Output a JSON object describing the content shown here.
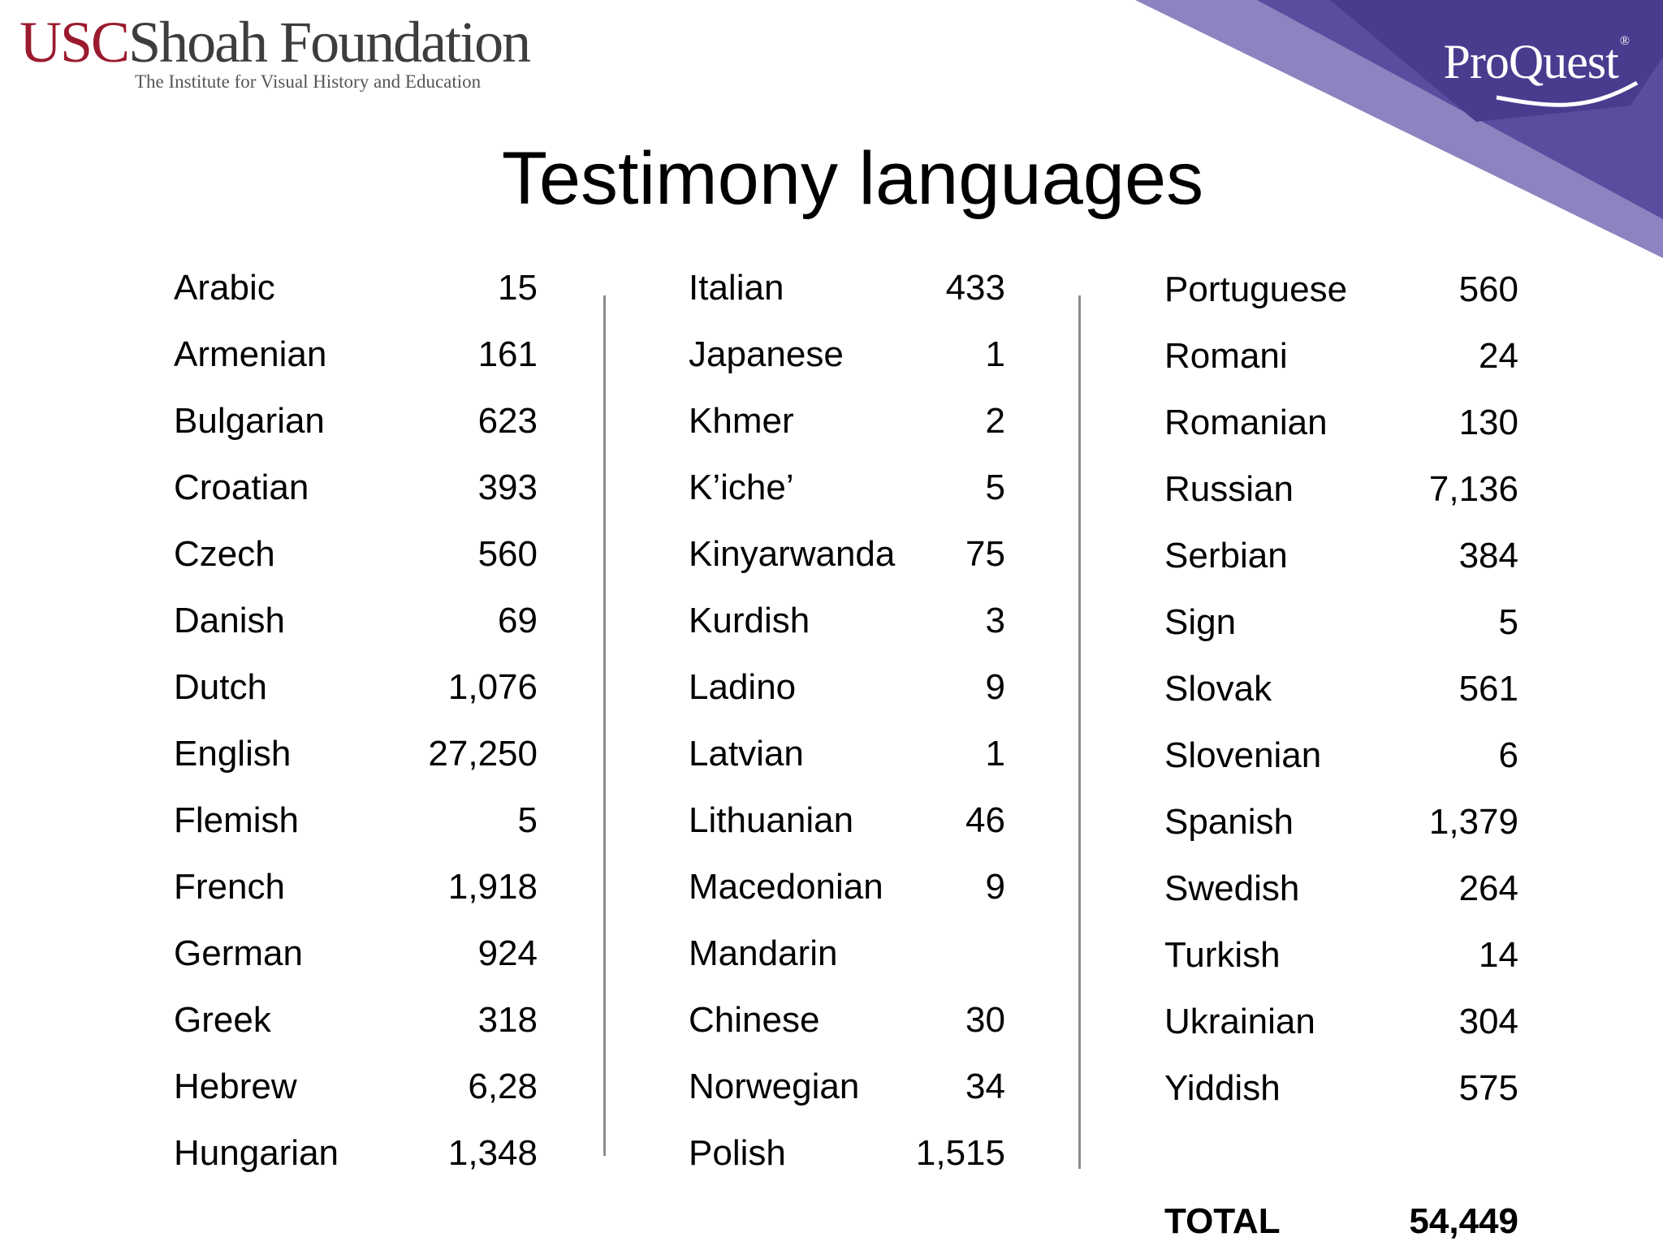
{
  "header": {
    "usc_logo": {
      "usc": "USC",
      "name": "Shoah Foundation",
      "subtitle": "The Institute for Visual History and Education"
    },
    "proquest_logo": {
      "text": "ProQuest",
      "mark": "®"
    },
    "colors": {
      "usc_red": "#9b1b2e",
      "proquest_purple": "#5a4a9e",
      "proquest_light_purple": "#9c90c8"
    }
  },
  "title": "Testimony languages",
  "columns": [
    [
      {
        "language": "Arabic",
        "count": "15"
      },
      {
        "language": "Armenian",
        "count": "161"
      },
      {
        "language": "Bulgarian",
        "count": "623"
      },
      {
        "language": "Croatian",
        "count": "393"
      },
      {
        "language": "Czech",
        "count": "560"
      },
      {
        "language": "Danish",
        "count": "69"
      },
      {
        "language": "Dutch",
        "count": "1,076"
      },
      {
        "language": "English",
        "count": "27,250"
      },
      {
        "language": "Flemish",
        "count": "5"
      },
      {
        "language": "French",
        "count": "1,918"
      },
      {
        "language": "German",
        "count": "924"
      },
      {
        "language": "Greek",
        "count": "318"
      },
      {
        "language": "Hebrew",
        "count": "6,28"
      },
      {
        "language": "Hungarian",
        "count": "1,348"
      }
    ],
    [
      {
        "language": "Italian",
        "count": "433"
      },
      {
        "language": "Japanese",
        "count": "1"
      },
      {
        "language": "Khmer",
        "count": "2"
      },
      {
        "language": "K’iche’",
        "count": "5"
      },
      {
        "language": "Kinyarwanda",
        "count": "75"
      },
      {
        "language": "Kurdish",
        "count": "3"
      },
      {
        "language": "Ladino",
        "count": "9"
      },
      {
        "language": "Latvian",
        "count": "1"
      },
      {
        "language": "Lithuanian",
        "count": "46"
      },
      {
        "language": "Macedonian",
        "count": "9"
      },
      {
        "language": "Mandarin",
        "count": ""
      },
      {
        "language": "Chinese",
        "count": "30"
      },
      {
        "language": "Norwegian",
        "count": "34"
      },
      {
        "language": "Polish",
        "count": "1,515"
      }
    ],
    [
      {
        "language": "Portuguese",
        "count": "560"
      },
      {
        "language": "Romani",
        "count": "24"
      },
      {
        "language": "Romanian",
        "count": "130"
      },
      {
        "language": "Russian",
        "count": "7,136"
      },
      {
        "language": "Serbian",
        "count": "384"
      },
      {
        "language": "Sign",
        "count": "5"
      },
      {
        "language": "Slovak",
        "count": "561"
      },
      {
        "language": "Slovenian",
        "count": "6"
      },
      {
        "language": "Spanish",
        "count": "1,379"
      },
      {
        "language": "Swedish",
        "count": "264"
      },
      {
        "language": "Turkish",
        "count": "14"
      },
      {
        "language": "Ukrainian",
        "count": "304"
      },
      {
        "language": "Yiddish",
        "count": "575"
      }
    ]
  ],
  "total": {
    "label": "TOTAL",
    "value": "54,449"
  }
}
